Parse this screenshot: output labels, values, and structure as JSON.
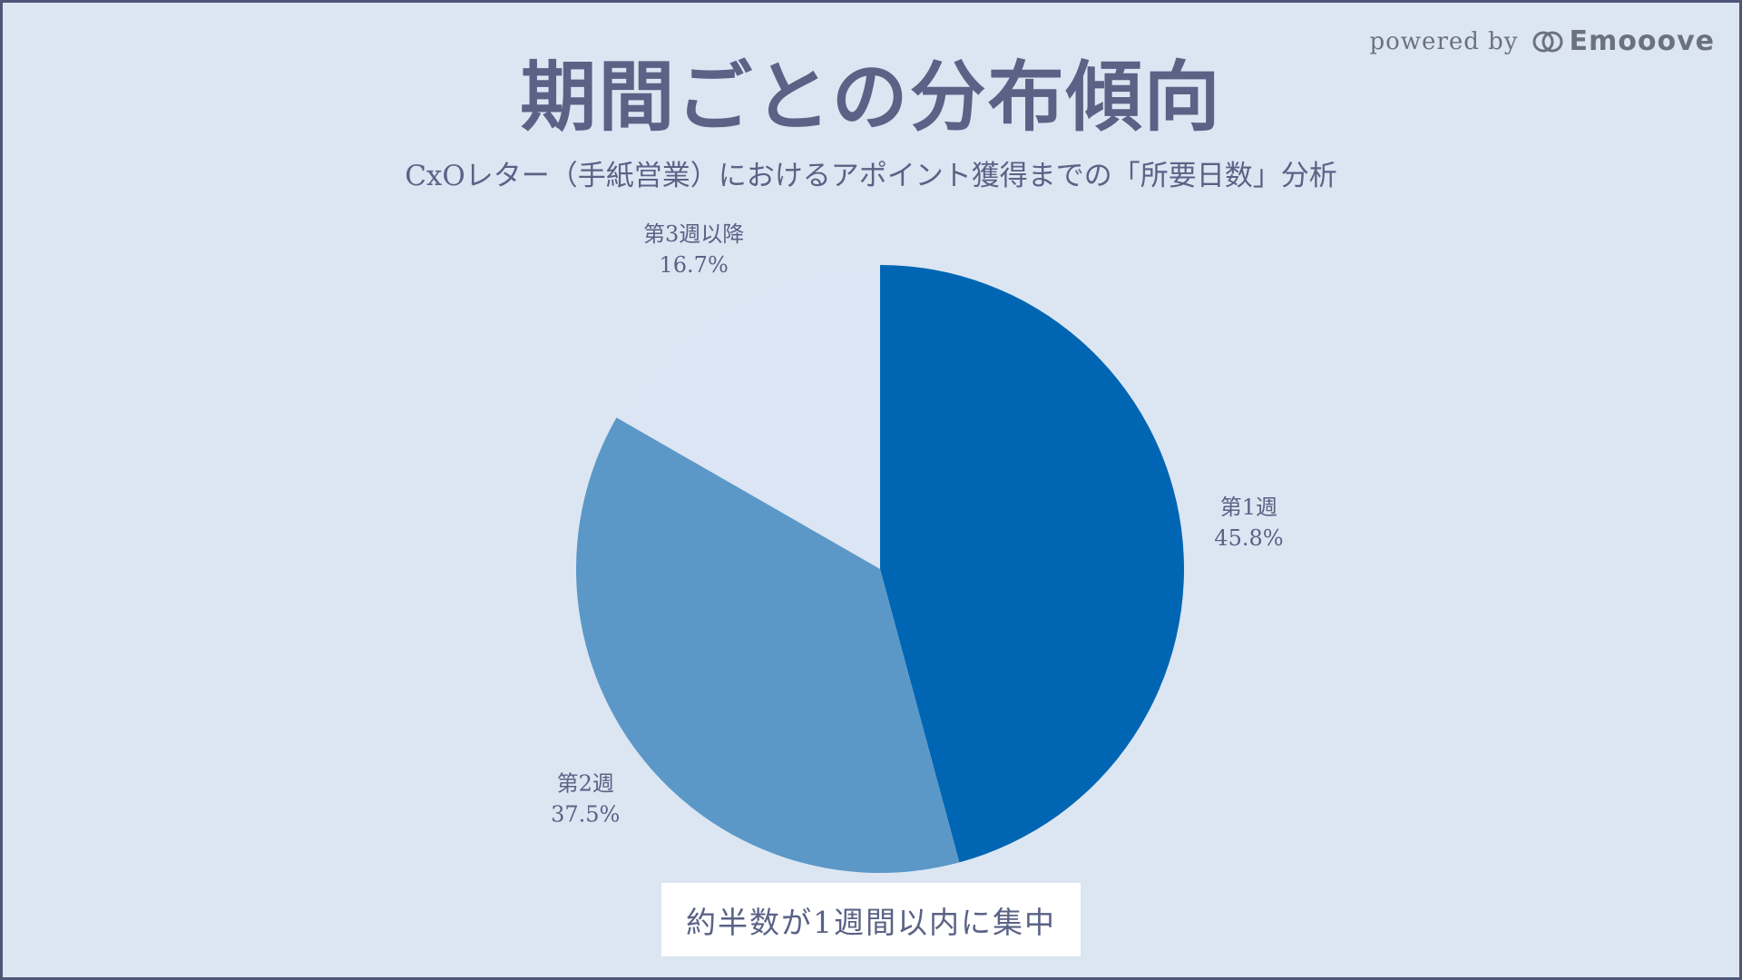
{
  "header": {
    "title": "期間ごとの分布傾向",
    "subtitle": "CxOレター（手紙営業）におけるアポイント獲得までの「所要日数」分析"
  },
  "brand": {
    "powered_by": "powered by",
    "logo_text": "Emooove"
  },
  "chart_data": {
    "type": "pie",
    "title": "期間ごとの分布傾向",
    "subtitle": "CxOレター（手紙営業）におけるアポイント獲得までの「所要日数」分析",
    "slices": [
      {
        "label": "第1週",
        "value": 45.8,
        "display": "45.8%",
        "color": "#0066b3"
      },
      {
        "label": "第2週",
        "value": 37.5,
        "display": "37.5%",
        "color": "#5b98c8"
      },
      {
        "label": "第3週以降",
        "value": 16.7,
        "display": "16.7%",
        "color": "#dbe5f3"
      }
    ],
    "start_angle": "12 o'clock",
    "direction": "clockwise",
    "legend": "none"
  },
  "callout": {
    "text": "約半数が1週間以内に集中"
  },
  "colors": {
    "background": "#dce6f2",
    "text": "#5a6286",
    "border": "#4e5678"
  }
}
